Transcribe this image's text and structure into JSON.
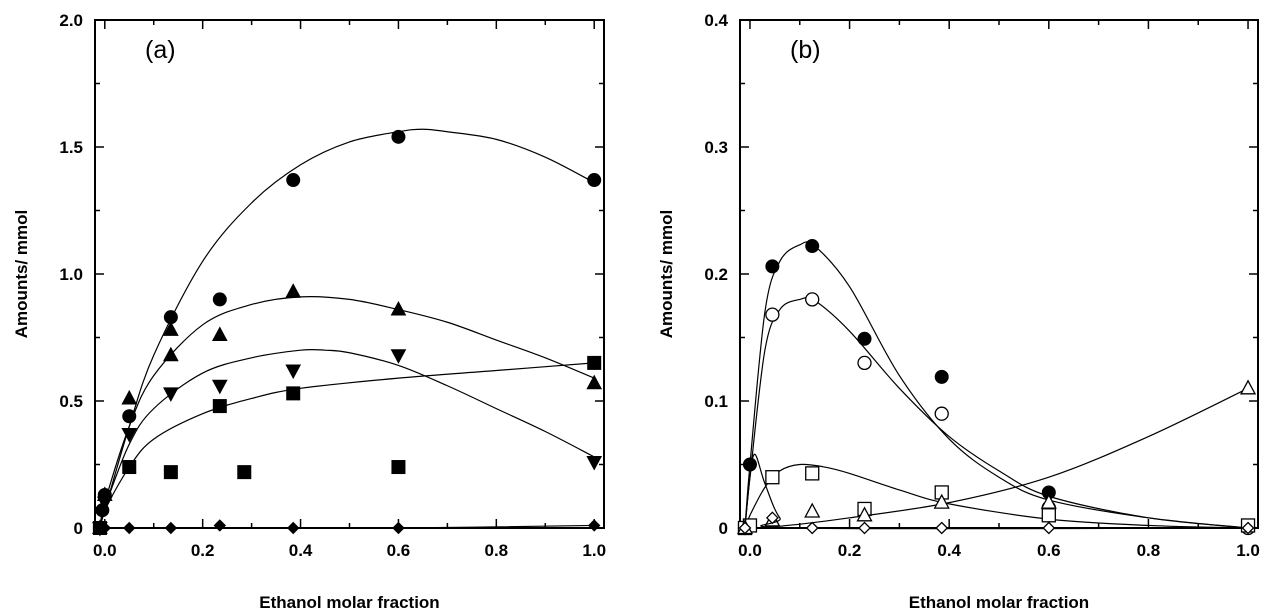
{
  "chart_data": [
    {
      "type": "scatter",
      "panel_label": "(a)",
      "xlabel": "Ethanol molar fraction",
      "ylabel": "Amounts/ mmol",
      "xlim": [
        -0.02,
        1.02
      ],
      "ylim": [
        0,
        2.0
      ],
      "xticks": [
        0.0,
        0.2,
        0.4,
        0.6,
        0.8,
        1.0
      ],
      "xtick_labels": [
        "0.0",
        "0.2",
        "0.4",
        "0.6",
        "0.8",
        "1.0"
      ],
      "yticks": [
        0,
        0.5,
        1.0,
        1.5,
        2.0
      ],
      "ytick_labels": [
        "0",
        "0.5",
        "1.0",
        "1.5",
        "2.0"
      ],
      "grid": false,
      "legend": "none",
      "series": [
        {
          "marker": "filled-circle",
          "points": [
            [
              -0.01,
              0.0
            ],
            [
              -0.005,
              0.07
            ],
            [
              0.0,
              0.13
            ],
            [
              0.05,
              0.44
            ],
            [
              0.135,
              0.83
            ],
            [
              0.235,
              0.9
            ],
            [
              0.385,
              1.37
            ],
            [
              0.6,
              1.54
            ],
            [
              1.0,
              1.37
            ]
          ],
          "fit": [
            [
              -0.01,
              0.0
            ],
            [
              0.0,
              0.07
            ],
            [
              0.05,
              0.4
            ],
            [
              0.1,
              0.68
            ],
            [
              0.2,
              1.05
            ],
            [
              0.3,
              1.28
            ],
            [
              0.4,
              1.43
            ],
            [
              0.5,
              1.52
            ],
            [
              0.6,
              1.56
            ],
            [
              0.65,
              1.57
            ],
            [
              0.7,
              1.56
            ],
            [
              0.8,
              1.53
            ],
            [
              0.9,
              1.46
            ],
            [
              1.0,
              1.36
            ]
          ]
        },
        {
          "marker": "filled-triangle-up",
          "points": [
            [
              -0.01,
              0.0
            ],
            [
              0.0,
              0.13
            ],
            [
              0.05,
              0.51
            ],
            [
              0.135,
              0.78
            ],
            [
              0.135,
              0.68
            ],
            [
              0.235,
              0.76
            ],
            [
              0.385,
              0.93
            ],
            [
              0.6,
              0.86
            ],
            [
              1.0,
              0.57
            ]
          ],
          "fit": [
            [
              -0.01,
              0.0
            ],
            [
              0.0,
              0.1
            ],
            [
              0.05,
              0.4
            ],
            [
              0.1,
              0.6
            ],
            [
              0.2,
              0.8
            ],
            [
              0.3,
              0.88
            ],
            [
              0.4,
              0.91
            ],
            [
              0.5,
              0.9
            ],
            [
              0.6,
              0.86
            ],
            [
              0.7,
              0.81
            ],
            [
              0.8,
              0.74
            ],
            [
              0.9,
              0.67
            ],
            [
              1.0,
              0.59
            ]
          ]
        },
        {
          "marker": "filled-triangle-down",
          "points": [
            [
              -0.01,
              0.0
            ],
            [
              0.0,
              0.1
            ],
            [
              0.05,
              0.37
            ],
            [
              0.135,
              0.53
            ],
            [
              0.235,
              0.56
            ],
            [
              0.385,
              0.62
            ],
            [
              0.6,
              0.68
            ],
            [
              1.0,
              0.26
            ]
          ],
          "fit": [
            [
              -0.01,
              0.0
            ],
            [
              0.0,
              0.08
            ],
            [
              0.05,
              0.33
            ],
            [
              0.1,
              0.47
            ],
            [
              0.2,
              0.61
            ],
            [
              0.3,
              0.67
            ],
            [
              0.4,
              0.7
            ],
            [
              0.45,
              0.7
            ],
            [
              0.5,
              0.69
            ],
            [
              0.6,
              0.64
            ],
            [
              0.7,
              0.56
            ],
            [
              0.8,
              0.47
            ],
            [
              0.9,
              0.38
            ],
            [
              1.0,
              0.28
            ]
          ]
        },
        {
          "marker": "filled-square",
          "points": [
            [
              -0.01,
              0.0
            ],
            [
              0.05,
              0.24
            ],
            [
              0.135,
              0.22
            ],
            [
              0.235,
              0.48
            ],
            [
              0.285,
              0.22
            ],
            [
              0.385,
              0.53
            ],
            [
              0.6,
              0.24
            ],
            [
              1.0,
              0.65
            ]
          ],
          "fit": [
            [
              -0.01,
              0.0
            ],
            [
              0.0,
              0.07
            ],
            [
              0.05,
              0.24
            ],
            [
              0.1,
              0.35
            ],
            [
              0.2,
              0.45
            ],
            [
              0.3,
              0.51
            ],
            [
              0.4,
              0.55
            ],
            [
              0.6,
              0.59
            ],
            [
              0.8,
              0.62
            ],
            [
              1.0,
              0.65
            ]
          ]
        },
        {
          "marker": "filled-diamond",
          "points": [
            [
              -0.01,
              0.0
            ],
            [
              0.0,
              0.0
            ],
            [
              0.05,
              0.0
            ],
            [
              0.135,
              0.0
            ],
            [
              0.235,
              0.01
            ],
            [
              0.385,
              0.0
            ],
            [
              0.6,
              0.0
            ],
            [
              1.0,
              0.01
            ]
          ],
          "fit": [
            [
              -0.01,
              0.0
            ],
            [
              0.2,
              0.0
            ],
            [
              0.6,
              0.0
            ],
            [
              1.0,
              0.01
            ]
          ]
        }
      ]
    },
    {
      "type": "scatter",
      "panel_label": "(b)",
      "xlabel": "Ethanol molar fraction",
      "ylabel": "Amounts/ mmol",
      "xlim": [
        -0.02,
        1.02
      ],
      "ylim": [
        0,
        0.4
      ],
      "xticks": [
        0.0,
        0.2,
        0.4,
        0.6,
        0.8,
        1.0
      ],
      "xtick_labels": [
        "0.0",
        "0.2",
        "0.4",
        "0.6",
        "0.8",
        "1.0"
      ],
      "yticks": [
        0,
        0.1,
        0.2,
        0.3,
        0.4
      ],
      "ytick_labels": [
        "0",
        "0.1",
        "0.2",
        "0.3",
        "0.4"
      ],
      "grid": false,
      "legend": "none",
      "series": [
        {
          "marker": "filled-circle",
          "points": [
            [
              -0.01,
              0.0
            ],
            [
              0.0,
              0.05
            ],
            [
              0.045,
              0.206
            ],
            [
              0.125,
              0.222
            ],
            [
              0.23,
              0.149
            ],
            [
              0.385,
              0.119
            ],
            [
              0.6,
              0.028
            ],
            [
              1.0,
              0.0
            ]
          ],
          "fit": [
            [
              -0.01,
              0.0
            ],
            [
              0.0,
              0.05
            ],
            [
              0.03,
              0.17
            ],
            [
              0.06,
              0.21
            ],
            [
              0.1,
              0.223
            ],
            [
              0.13,
              0.222
            ],
            [
              0.2,
              0.19
            ],
            [
              0.3,
              0.12
            ],
            [
              0.4,
              0.07
            ],
            [
              0.5,
              0.04
            ],
            [
              0.6,
              0.022
            ],
            [
              0.8,
              0.008
            ],
            [
              1.0,
              0.0
            ]
          ]
        },
        {
          "marker": "open-circle",
          "points": [
            [
              -0.01,
              0.0
            ],
            [
              0.045,
              0.168
            ],
            [
              0.125,
              0.18
            ],
            [
              0.23,
              0.13
            ],
            [
              0.385,
              0.09
            ],
            [
              0.6,
              0.016
            ],
            [
              1.0,
              0.0
            ]
          ],
          "fit": [
            [
              -0.01,
              0.0
            ],
            [
              0.0,
              0.04
            ],
            [
              0.03,
              0.14
            ],
            [
              0.06,
              0.172
            ],
            [
              0.1,
              0.18
            ],
            [
              0.13,
              0.179
            ],
            [
              0.2,
              0.155
            ],
            [
              0.3,
              0.11
            ],
            [
              0.4,
              0.072
            ],
            [
              0.5,
              0.045
            ],
            [
              0.6,
              0.025
            ],
            [
              0.8,
              0.008
            ],
            [
              1.0,
              0.0
            ]
          ]
        },
        {
          "marker": "open-square",
          "points": [
            [
              -0.01,
              0.0
            ],
            [
              0.0,
              0.002
            ],
            [
              0.045,
              0.04
            ],
            [
              0.125,
              0.043
            ],
            [
              0.23,
              0.015
            ],
            [
              0.385,
              0.028
            ],
            [
              0.6,
              0.01
            ],
            [
              1.0,
              0.002
            ]
          ],
          "fit": [
            [
              -0.01,
              0.0
            ],
            [
              0.0,
              0.01
            ],
            [
              0.03,
              0.032
            ],
            [
              0.06,
              0.045
            ],
            [
              0.1,
              0.05
            ],
            [
              0.15,
              0.048
            ],
            [
              0.2,
              0.043
            ],
            [
              0.3,
              0.03
            ],
            [
              0.4,
              0.019
            ],
            [
              0.6,
              0.007
            ],
            [
              0.8,
              0.002
            ],
            [
              1.0,
              0.0
            ]
          ]
        },
        {
          "marker": "open-triangle-up",
          "points": [
            [
              -0.01,
              0.0
            ],
            [
              0.045,
              0.006
            ],
            [
              0.125,
              0.013
            ],
            [
              0.23,
              0.01
            ],
            [
              0.385,
              0.02
            ],
            [
              0.6,
              0.02
            ],
            [
              1.0,
              0.11
            ]
          ],
          "fit": [
            [
              0.02,
              0.0
            ],
            [
              0.1,
              0.003
            ],
            [
              0.2,
              0.008
            ],
            [
              0.4,
              0.02
            ],
            [
              0.6,
              0.04
            ],
            [
              0.8,
              0.072
            ],
            [
              1.0,
              0.11
            ]
          ]
        },
        {
          "marker": "open-diamond",
          "points": [
            [
              -0.01,
              0.0
            ],
            [
              0.045,
              0.008
            ],
            [
              0.125,
              0.0
            ],
            [
              0.23,
              0.0
            ],
            [
              0.385,
              0.0
            ],
            [
              0.6,
              0.0
            ],
            [
              1.0,
              0.0
            ]
          ],
          "fit": [
            [
              -0.01,
              0.0
            ],
            [
              0.0,
              0.04
            ],
            [
              0.01,
              0.058
            ],
            [
              0.03,
              0.035
            ],
            [
              0.06,
              0.008
            ],
            [
              0.1,
              0.0
            ],
            [
              1.0,
              0.0
            ]
          ]
        }
      ]
    }
  ]
}
